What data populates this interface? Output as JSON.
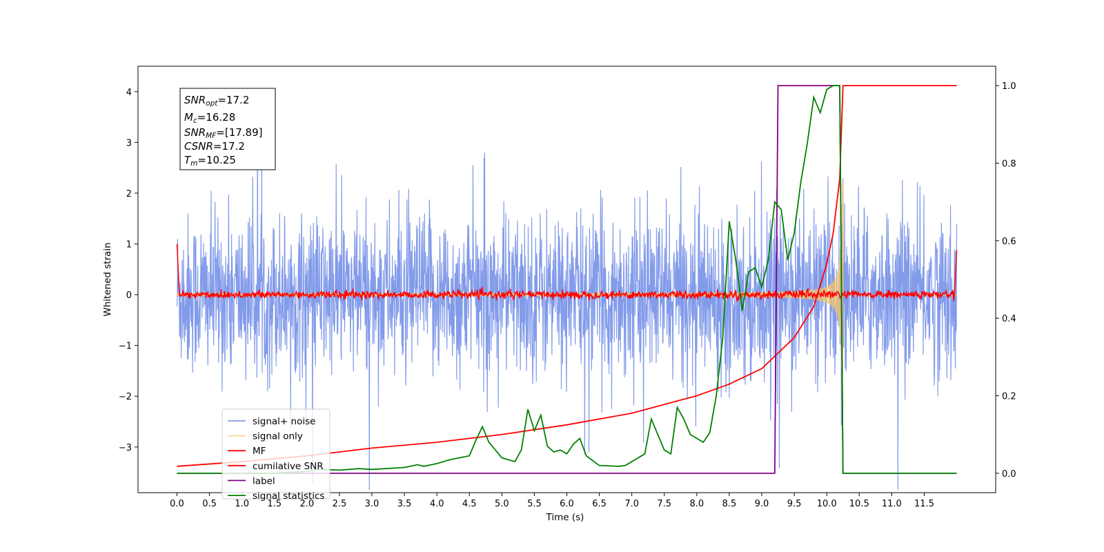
{
  "chart_data": {
    "type": "line",
    "title": "",
    "xlabel": "Time (s)",
    "ylabel": "Whitened strain",
    "xlim": [
      -0.6,
      12.6
    ],
    "ylim": [
      -3.9,
      4.5
    ],
    "y2lim": [
      -0.05,
      1.05
    ],
    "xticks": [
      "0.0",
      "0.5",
      "1.0",
      "1.5",
      "2.0",
      "2.5",
      "3.0",
      "3.5",
      "4.0",
      "4.5",
      "5.0",
      "5.5",
      "6.0",
      "6.5",
      "7.0",
      "7.5",
      "8.0",
      "8.5",
      "9.0",
      "9.5",
      "10.0",
      "10.5",
      "11.0",
      "11.5"
    ],
    "yticks": [
      "−3",
      "−2",
      "−1",
      "0",
      "1",
      "2",
      "3",
      "4"
    ],
    "y2ticks": [
      "0.0",
      "0.2",
      "0.4",
      "0.6",
      "0.8",
      "1.0"
    ],
    "info_box": {
      "snr_opt_base": "SNR",
      "snr_opt_sub": "opt",
      "snr_opt_value": "=17.2",
      "mc_base": "M",
      "mc_sub": "c",
      "mc_value": "=16.28",
      "snr_mf_base": "SNR",
      "snr_mf_sub": "MF",
      "snr_mf_value": "=[17.89]",
      "csnr_base": "CSNR",
      "csnr_value": "=17.2",
      "tm_base": "T",
      "tm_sub": "m",
      "tm_value": "=10.25"
    },
    "legend_position": "lower-left",
    "series": [
      {
        "name": "signal+ noise",
        "color": "#7b96e9",
        "axis": "left",
        "description_note": "",
        "x_range": [
          0.0,
          12.0
        ],
        "noise_std": 1.0,
        "chirp_end": 10.25
      },
      {
        "name": "signal only",
        "color": "#f4c46c",
        "axis": "left",
        "x_range": [
          0.0,
          12.0
        ],
        "chirp_end": 10.25,
        "peak_amplitude": 2.2
      },
      {
        "name": "MF",
        "color": "#ff0000",
        "axis": "left",
        "x_range": [
          0.0,
          12.0
        ],
        "start_value": 1.0,
        "end_value": 0.88,
        "noise_std": 0.04
      },
      {
        "name": "cumilative SNR",
        "color": "#ff0000",
        "axis": "right",
        "x": [
          0.0,
          1.0,
          2.0,
          3.0,
          4.0,
          5.0,
          6.0,
          7.0,
          8.0,
          8.5,
          9.0,
          9.5,
          9.8,
          10.0,
          10.1,
          10.2,
          10.25,
          12.0
        ],
        "y": [
          0.018,
          0.03,
          0.045,
          0.065,
          0.08,
          0.1,
          0.125,
          0.155,
          0.2,
          0.23,
          0.27,
          0.35,
          0.43,
          0.54,
          0.62,
          0.76,
          1.0,
          1.0
        ]
      },
      {
        "name": "label",
        "color": "#800080",
        "axis": "right",
        "x": [
          0.0,
          9.2,
          9.25,
          10.2,
          10.25,
          12.0
        ],
        "y": [
          0.0,
          0.0,
          1.0,
          1.0,
          0.0,
          0.0
        ]
      },
      {
        "name": "signal statistics",
        "color": "#008000",
        "axis": "right",
        "x": [
          0.0,
          0.5,
          1.0,
          1.5,
          2.0,
          2.2,
          2.5,
          2.8,
          3.0,
          3.2,
          3.5,
          3.7,
          3.8,
          4.0,
          4.1,
          4.2,
          4.5,
          4.6,
          4.7,
          4.8,
          4.9,
          5.0,
          5.2,
          5.3,
          5.4,
          5.5,
          5.6,
          5.7,
          5.8,
          5.9,
          6.0,
          6.1,
          6.2,
          6.3,
          6.5,
          6.8,
          6.9,
          7.0,
          7.2,
          7.3,
          7.4,
          7.5,
          7.6,
          7.7,
          7.8,
          7.9,
          8.0,
          8.1,
          8.2,
          8.3,
          8.4,
          8.5,
          8.6,
          8.7,
          8.8,
          8.9,
          9.0,
          9.1,
          9.2,
          9.3,
          9.4,
          9.5,
          9.6,
          9.7,
          9.8,
          9.9,
          10.0,
          10.1,
          10.2,
          10.25,
          10.3,
          11.0,
          11.5,
          12.0
        ],
        "y": [
          0.0,
          0.0,
          0.0,
          0.0,
          0.005,
          0.01,
          0.008,
          0.012,
          0.01,
          0.012,
          0.015,
          0.022,
          0.018,
          0.025,
          0.03,
          0.035,
          0.045,
          0.085,
          0.12,
          0.08,
          0.06,
          0.04,
          0.03,
          0.06,
          0.165,
          0.11,
          0.15,
          0.07,
          0.055,
          0.06,
          0.05,
          0.075,
          0.09,
          0.045,
          0.02,
          0.018,
          0.02,
          0.03,
          0.05,
          0.14,
          0.1,
          0.06,
          0.05,
          0.17,
          0.14,
          0.1,
          0.09,
          0.08,
          0.105,
          0.2,
          0.35,
          0.65,
          0.55,
          0.42,
          0.52,
          0.53,
          0.48,
          0.55,
          0.7,
          0.68,
          0.55,
          0.62,
          0.75,
          0.85,
          0.97,
          0.93,
          0.99,
          1.0,
          1.0,
          0.0,
          0.0,
          0.0,
          0.0,
          0.0
        ]
      }
    ]
  }
}
